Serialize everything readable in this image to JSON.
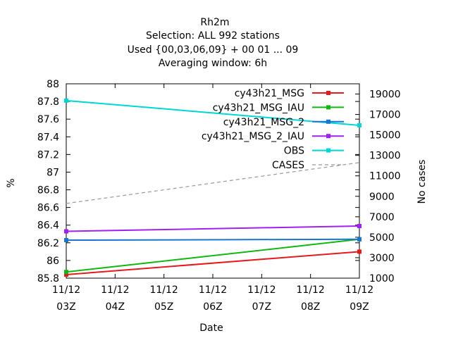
{
  "chart_data": {
    "type": "line",
    "title": "Rh2m",
    "subtitle_lines": [
      "Selection: ALL    992 stations",
      "Used {00,03,06,09} + 00 01 ... 09",
      "Averaging window:  6h"
    ],
    "xlabel": "Date",
    "ylabel": "%",
    "y2label": "No cases",
    "x_categories": [
      "11/12 03Z",
      "11/12 04Z",
      "11/12 05Z",
      "11/12 06Z",
      "11/12 07Z",
      "11/12 08Z",
      "11/12 09Z"
    ],
    "x_tick_top": [
      "11/12",
      "11/12",
      "11/12",
      "11/12",
      "11/12",
      "11/12",
      "11/12"
    ],
    "x_tick_bottom": [
      "03Z",
      "04Z",
      "05Z",
      "06Z",
      "07Z",
      "08Z",
      "09Z"
    ],
    "ylim": [
      85.8,
      88.0
    ],
    "yticks": [
      "85.8",
      "86",
      "86.2",
      "86.4",
      "86.6",
      "86.8",
      "87",
      "87.2",
      "87.4",
      "87.6",
      "87.8",
      "88"
    ],
    "y2lim": [
      1000,
      20000
    ],
    "y2ticks": [
      "1000",
      "3000",
      "5000",
      "7000",
      "9000",
      "11000",
      "13000",
      "15000",
      "17000",
      "19000"
    ],
    "grid": false,
    "legend_position": "top-right",
    "series": [
      {
        "name": "cy43h21_MSG",
        "color": "#e41a1c",
        "x": [
          0,
          6
        ],
        "values": [
          85.84,
          86.1
        ],
        "axis": "y"
      },
      {
        "name": "cy43h21_MSG_IAU",
        "color": "#11b811",
        "x": [
          0,
          6
        ],
        "values": [
          85.87,
          86.24
        ],
        "axis": "y"
      },
      {
        "name": "cy43h21_MSG_2",
        "color": "#1a75d1",
        "x": [
          0,
          6
        ],
        "values": [
          86.23,
          86.24
        ],
        "axis": "y"
      },
      {
        "name": "cy43h21_MSG_2_IAU",
        "color": "#a020f0",
        "x": [
          0,
          6
        ],
        "values": [
          86.33,
          86.39
        ],
        "axis": "y"
      },
      {
        "name": "OBS",
        "color": "#00d5d5",
        "x": [
          0,
          6
        ],
        "values": [
          87.81,
          87.53
        ],
        "axis": "y"
      },
      {
        "name": "CASES",
        "color": "#999999",
        "x": [
          0,
          6
        ],
        "values": [
          8300,
          12300
        ],
        "axis": "y2",
        "dashed": true
      }
    ]
  }
}
